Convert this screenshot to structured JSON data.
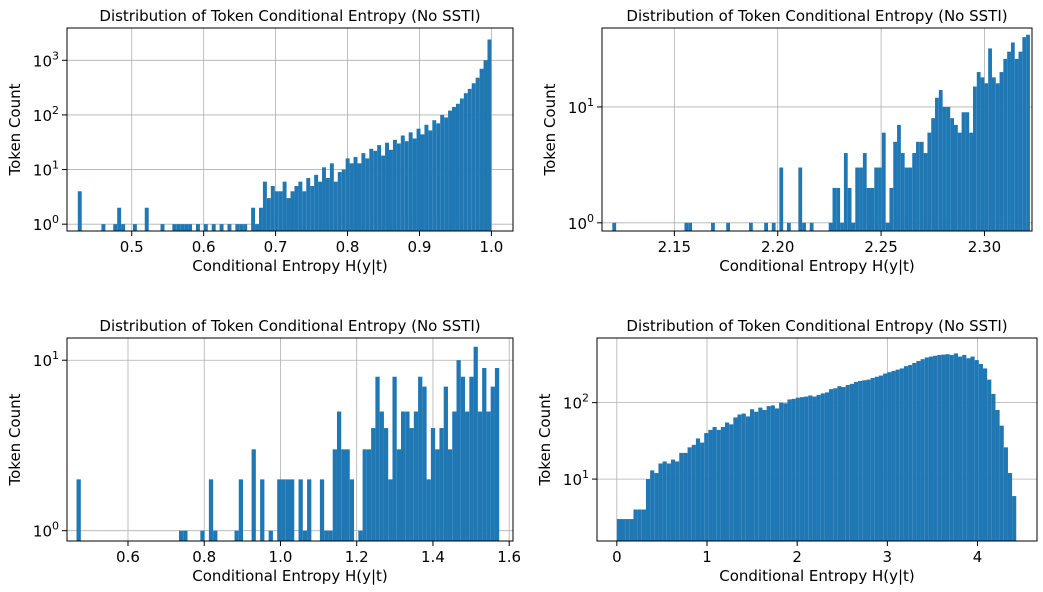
{
  "chart_data": [
    {
      "type": "bar",
      "title": "Distribution of Token Conditional Entropy (No SSTI)",
      "xlabel": "Conditional Entropy H(y|t)",
      "ylabel": "Token Count",
      "xlim": [
        0.41,
        1.03
      ],
      "ylim_log": [
        0.75,
        3900
      ],
      "y_scale": "log",
      "grid": true,
      "bar_color": "#1f77b4",
      "bin_range": [
        0.425,
        1.0
      ],
      "xticks": [
        {
          "v": 0.5,
          "label": "0.5"
        },
        {
          "v": 0.6,
          "label": "0.6"
        },
        {
          "v": 0.7,
          "label": "0.7"
        },
        {
          "v": 0.8,
          "label": "0.8"
        },
        {
          "v": 0.9,
          "label": "0.9"
        },
        {
          "v": 1.0,
          "label": "1.0"
        }
      ],
      "yticks": [
        {
          "v": 1,
          "b": "10",
          "e": "0"
        },
        {
          "v": 10,
          "b": "10",
          "e": "1"
        },
        {
          "v": 100,
          "b": "10",
          "e": "2"
        },
        {
          "v": 1000,
          "b": "10",
          "e": "3"
        }
      ],
      "values": [
        4,
        0,
        0,
        0,
        0,
        0,
        1,
        0,
        0,
        1,
        2,
        1,
        0,
        0,
        1,
        0,
        0,
        2,
        0,
        0,
        0,
        1,
        0,
        0,
        1,
        1,
        1,
        1,
        1,
        0,
        1,
        0,
        1,
        0,
        1,
        0,
        1,
        0,
        1,
        0,
        1,
        1,
        1,
        0,
        2,
        1,
        2,
        6,
        3,
        5,
        4,
        4,
        6,
        3,
        4,
        5,
        6,
        4,
        7,
        5,
        8,
        6,
        11,
        7,
        13,
        6,
        9,
        10,
        16,
        13,
        17,
        13,
        20,
        16,
        24,
        22,
        28,
        18,
        31,
        23,
        35,
        30,
        42,
        33,
        48,
        37,
        56,
        44,
        66,
        52,
        80,
        70,
        100,
        90,
        120,
        140,
        160,
        200,
        250,
        300,
        380,
        480,
        700,
        1000,
        2400
      ]
    },
    {
      "type": "bar",
      "title": "Distribution of Token Conditional Entropy (No SSTI)",
      "xlabel": "Conditional Entropy H(y|t)",
      "ylabel": "Token Count",
      "xlim": [
        2.115,
        2.323
      ],
      "ylim_log": [
        0.85,
        48
      ],
      "y_scale": "log",
      "grid": true,
      "bar_color": "#1f77b4",
      "bin_range": [
        2.12,
        2.322
      ],
      "xticks": [
        {
          "v": 2.15,
          "label": "2.15"
        },
        {
          "v": 2.2,
          "label": "2.20"
        },
        {
          "v": 2.25,
          "label": "2.25"
        },
        {
          "v": 2.3,
          "label": "2.30"
        }
      ],
      "yticks": [
        {
          "v": 1,
          "b": "10",
          "e": "0"
        },
        {
          "v": 10,
          "b": "10",
          "e": "1"
        }
      ],
      "values": [
        1,
        0,
        0,
        0,
        0,
        0,
        0,
        0,
        0,
        0,
        0,
        0,
        0,
        0,
        0,
        0,
        0,
        0,
        0,
        1,
        1,
        0,
        0,
        0,
        0,
        0,
        1,
        0,
        0,
        0,
        1,
        0,
        0,
        0,
        0,
        0,
        1,
        0,
        0,
        0,
        1,
        0,
        1,
        0,
        3,
        0,
        1,
        0,
        0,
        3,
        1,
        0,
        1,
        0,
        0,
        0,
        0,
        1,
        2,
        2,
        1,
        4,
        2,
        1,
        3,
        3,
        4,
        2,
        2,
        3,
        3,
        6,
        1,
        2,
        5,
        7,
        4,
        3,
        3,
        4,
        5,
        5,
        4,
        6,
        8,
        12,
        14,
        10,
        10,
        8,
        7,
        6,
        9,
        9,
        6,
        15,
        20,
        18,
        16,
        32,
        18,
        16,
        20,
        26,
        30,
        36,
        26,
        30,
        40,
        42
      ]
    },
    {
      "type": "bar",
      "title": "Distribution of Token Conditional Entropy (No SSTI)",
      "xlabel": "Conditional Entropy H(y|t)",
      "ylabel": "Token Count",
      "xlim": [
        0.44,
        1.61
      ],
      "ylim_log": [
        0.87,
        13.5
      ],
      "y_scale": "log",
      "grid": true,
      "bar_color": "#1f77b4",
      "bin_range": [
        0.465,
        1.585
      ],
      "xticks": [
        {
          "v": 0.6,
          "label": "0.6"
        },
        {
          "v": 0.8,
          "label": "0.8"
        },
        {
          "v": 1.0,
          "label": "1.0"
        },
        {
          "v": 1.2,
          "label": "1.2"
        },
        {
          "v": 1.4,
          "label": "1.4"
        },
        {
          "v": 1.6,
          "label": "1.6"
        }
      ],
      "yticks": [
        {
          "v": 1,
          "b": "10",
          "e": "0"
        },
        {
          "v": 10,
          "b": "10",
          "e": "1"
        }
      ],
      "values": [
        2,
        0,
        0,
        0,
        0,
        0,
        0,
        0,
        0,
        0,
        0,
        0,
        0,
        0,
        0,
        0,
        0,
        0,
        0,
        0,
        0,
        0,
        0,
        0,
        1,
        1,
        0,
        0,
        0,
        1,
        0,
        2,
        1,
        0,
        0,
        0,
        0,
        1,
        2,
        0,
        0,
        3,
        0,
        2,
        0,
        1,
        0,
        2,
        2,
        2,
        2,
        0,
        2,
        1,
        2,
        0,
        0,
        2,
        1,
        1,
        3,
        5,
        3,
        3,
        2,
        0,
        1,
        3,
        3,
        4,
        8,
        5,
        4,
        2,
        8,
        3,
        5,
        5,
        4,
        5,
        8,
        7,
        2,
        4,
        3,
        4,
        7,
        3,
        5,
        10,
        8,
        5,
        8,
        12,
        5,
        9,
        5,
        7,
        9,
        0
      ]
    },
    {
      "type": "bar",
      "title": "Distribution of Token Conditional Entropy (No SSTI)",
      "xlabel": "Conditional Entropy H(y|t)",
      "ylabel": "Token Count",
      "xlim": [
        -0.22,
        4.66
      ],
      "ylim_log": [
        1.55,
        700
      ],
      "y_scale": "log",
      "grid": true,
      "bar_color": "#1f77b4",
      "bin_range": [
        0.0,
        4.43
      ],
      "xticks": [
        {
          "v": 0,
          "label": "0"
        },
        {
          "v": 1,
          "label": "1"
        },
        {
          "v": 2,
          "label": "2"
        },
        {
          "v": 3,
          "label": "3"
        },
        {
          "v": 4,
          "label": "4"
        }
      ],
      "yticks": [
        {
          "v": 10,
          "b": "10",
          "e": "1"
        },
        {
          "v": 100,
          "b": "10",
          "e": "2"
        }
      ],
      "values": [
        3,
        3,
        3,
        3,
        4,
        4,
        4,
        10,
        13,
        12,
        16,
        17,
        16,
        18,
        17,
        22,
        22,
        26,
        28,
        34,
        30,
        40,
        44,
        48,
        44,
        48,
        55,
        52,
        64,
        70,
        72,
        66,
        82,
        76,
        86,
        80,
        90,
        92,
        84,
        100,
        98,
        110,
        112,
        116,
        118,
        120,
        124,
        120,
        126,
        132,
        136,
        150,
        154,
        164,
        160,
        170,
        176,
        186,
        192,
        196,
        200,
        210,
        218,
        226,
        240,
        250,
        260,
        270,
        280,
        300,
        310,
        330,
        350,
        370,
        390,
        400,
        410,
        420,
        424,
        430,
        420,
        440,
        400,
        420,
        380,
        400,
        360,
        320,
        280,
        200,
        130,
        80,
        50,
        26,
        12,
        6
      ]
    }
  ]
}
